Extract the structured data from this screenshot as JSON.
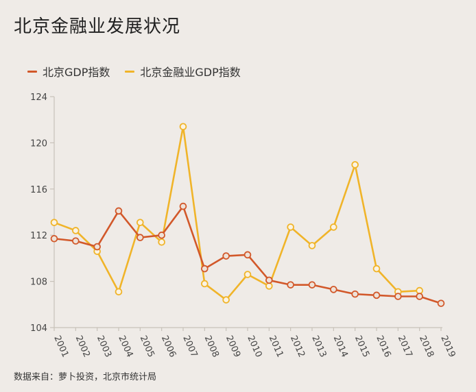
{
  "title": "北京金融业发展状况",
  "source": "数据来自：萝卜投资，北京市统计局",
  "colors": {
    "background": "#efebe7",
    "axis": "#c7c1b9",
    "tick_text": "#444444",
    "gdp": "#d2582a",
    "gdp_marker_fill": "#eee2d8",
    "finance": "#f0b429",
    "finance_marker_fill": "#fbf3e2"
  },
  "chart_data": {
    "type": "line",
    "title": "北京金融业发展状况",
    "xlabel": "",
    "ylabel": "",
    "categories": [
      "2001",
      "2002",
      "2003",
      "2004",
      "2005",
      "2006",
      "2007",
      "2008",
      "2009",
      "2010",
      "2011",
      "2012",
      "2013",
      "2014",
      "2015",
      "2016",
      "2017",
      "2018",
      "2019"
    ],
    "ylim": [
      104,
      124
    ],
    "yticks": [
      104,
      108,
      112,
      116,
      120,
      124
    ],
    "grid": false,
    "legend_position": "top-left",
    "series": [
      {
        "name": "北京GDP指数",
        "color": "#d2582a",
        "values": [
          111.7,
          111.5,
          111.0,
          114.1,
          111.8,
          112.0,
          114.5,
          109.1,
          110.2,
          110.3,
          108.1,
          107.7,
          107.7,
          107.3,
          106.9,
          106.8,
          106.7,
          106.7,
          106.1
        ]
      },
      {
        "name": "北京金融业GDP指数",
        "color": "#f0b429",
        "values": [
          113.1,
          112.4,
          110.6,
          107.1,
          113.1,
          111.4,
          121.4,
          107.8,
          106.4,
          108.6,
          107.6,
          112.7,
          111.1,
          112.7,
          118.1,
          109.1,
          107.1,
          107.2,
          null
        ]
      }
    ]
  }
}
